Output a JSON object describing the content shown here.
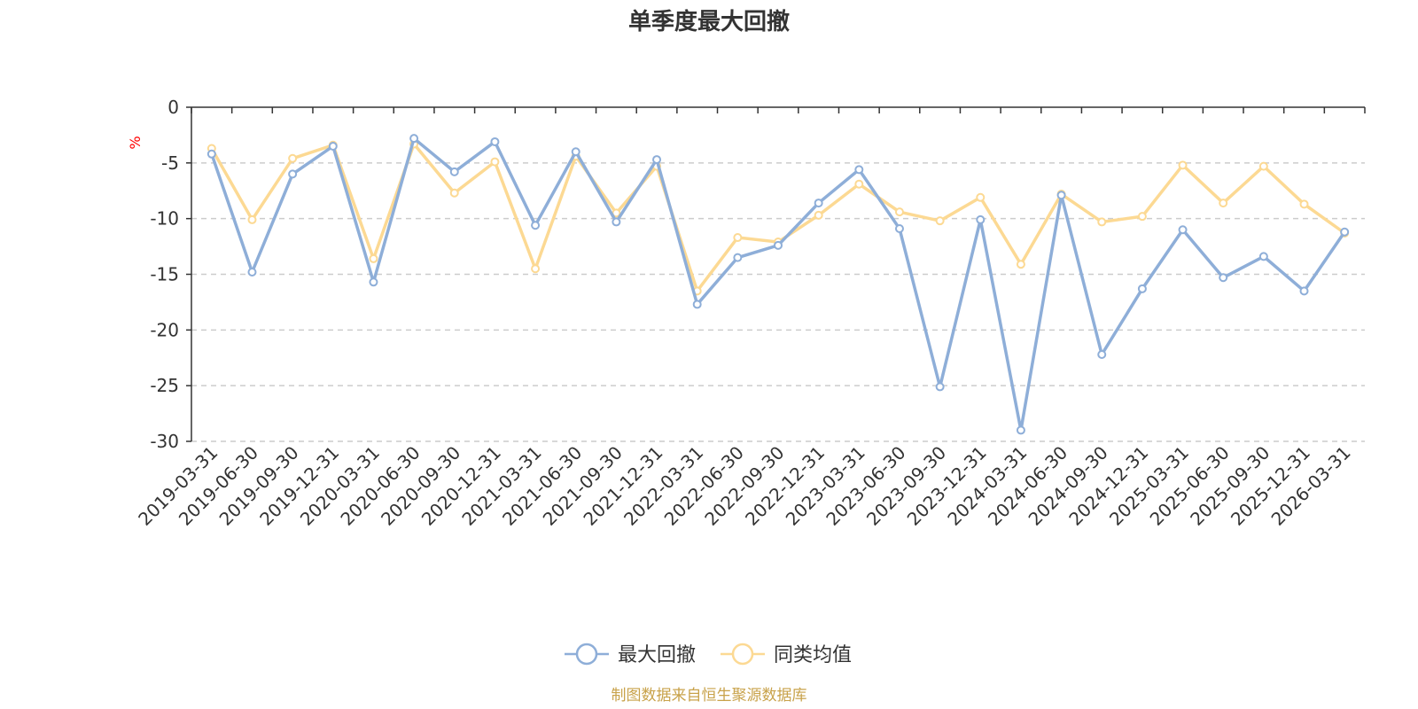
{
  "chart_data": {
    "type": "line",
    "title": "单季度最大回撤",
    "ylabel": "%",
    "ylim": [
      -30,
      0
    ],
    "yticks": [
      0,
      -5,
      -10,
      -15,
      -20,
      -25,
      -30
    ],
    "grid": true,
    "legend_position": "bottom",
    "categories": [
      "2019-03-31",
      "2019-06-30",
      "2019-09-30",
      "2019-12-31",
      "2020-03-31",
      "2020-06-30",
      "2020-09-30",
      "2020-12-31",
      "2021-03-31",
      "2021-06-30",
      "2021-09-30",
      "2021-12-31",
      "2022-03-31",
      "2022-06-30",
      "2022-09-30",
      "2022-12-31",
      "2023-03-31",
      "2023-06-30",
      "2023-09-30",
      "2023-12-31",
      "2024-03-31",
      "2024-06-30",
      "2024-09-30",
      "2024-12-31",
      "2025-03-31",
      "2025-06-30",
      "2025-09-30",
      "2025-12-31",
      "2026-03-31"
    ],
    "series": [
      {
        "name": "最大回撤",
        "color": "#8eaed8",
        "values": [
          -4.2,
          -14.8,
          -6.0,
          -3.5,
          -15.7,
          -2.8,
          -5.8,
          -3.1,
          -10.6,
          -4.0,
          -10.3,
          -4.7,
          -17.7,
          -13.5,
          -12.4,
          -8.6,
          -5.6,
          -10.9,
          -25.1,
          -10.1,
          -29.0,
          -7.9,
          -22.2,
          -16.3,
          -11.0,
          -15.3,
          -13.4,
          -16.5,
          -11.2
        ]
      },
      {
        "name": "同类均值",
        "color": "#fcd993",
        "values": [
          -3.7,
          -10.1,
          -4.6,
          -3.4,
          -13.6,
          -3.3,
          -7.7,
          -4.9,
          -14.5,
          -4.4,
          -9.5,
          -5.3,
          -16.5,
          -11.7,
          -12.1,
          -9.7,
          -6.9,
          -9.4,
          -10.2,
          -8.1,
          -14.1,
          -7.8,
          -10.3,
          -9.8,
          -5.2,
          -8.6,
          -5.3,
          -8.7,
          -11.3
        ]
      }
    ]
  },
  "footer": {
    "source": "制图数据来自恒生聚源数据库"
  }
}
